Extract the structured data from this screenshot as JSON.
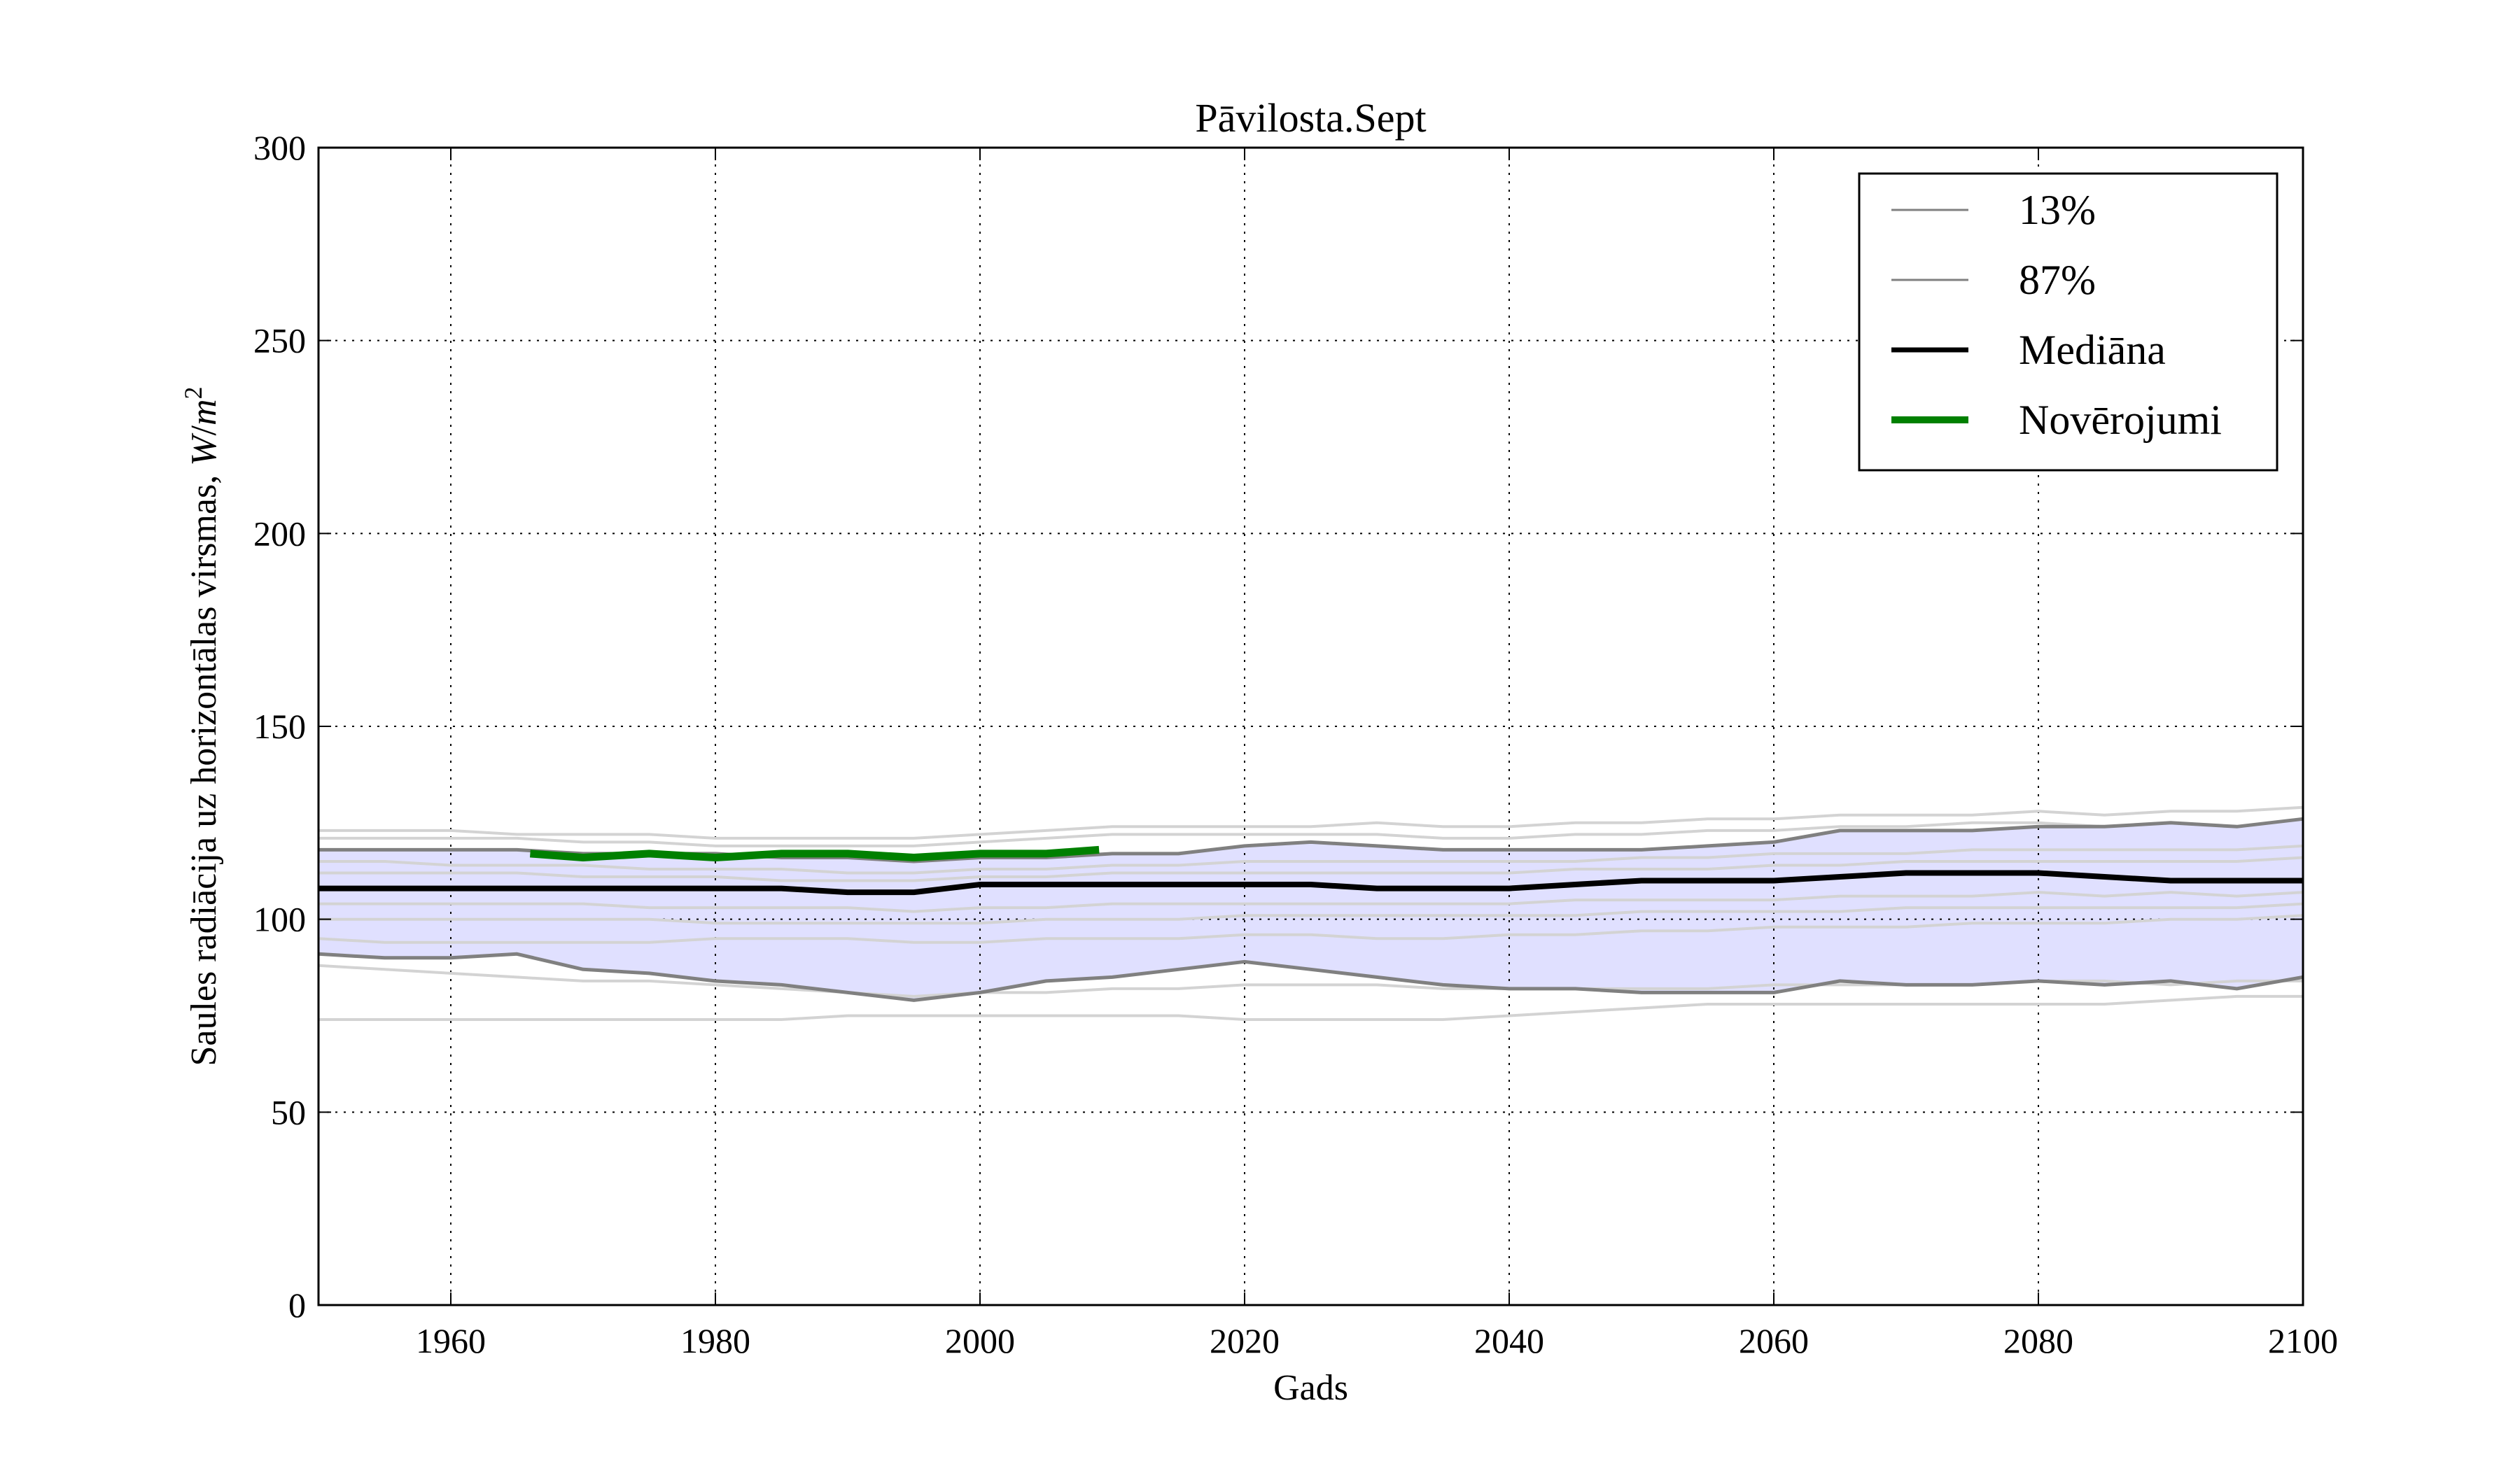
{
  "chart_data": {
    "type": "line",
    "title": "Pāvilosta.Sept",
    "xlabel": "Gads",
    "ylabel": "Saules radiācija uz horizontālas virsmas, W/m²",
    "ylabel_main": "Saules radiācija uz horizontālas virsmas, ",
    "ylabel_unit_w": "W",
    "ylabel_unit_slash": "/",
    "ylabel_unit_m": "m",
    "ylabel_unit_exp": "2",
    "xlim": [
      1950,
      2100
    ],
    "ylim": [
      0,
      300
    ],
    "xticks": [
      1960,
      1980,
      2000,
      2020,
      2040,
      2060,
      2080,
      2100
    ],
    "yticks": [
      0,
      50,
      100,
      150,
      200,
      250,
      300
    ],
    "grid": true,
    "legend_position": "top-right",
    "legend": [
      {
        "label": "13%",
        "color": "#808080",
        "style": "thin"
      },
      {
        "label": "87%",
        "color": "#808080",
        "style": "thin"
      },
      {
        "label": "Mediāna",
        "color": "#000000",
        "style": "thick"
      },
      {
        "label": "Novērojumi",
        "color": "#008000",
        "style": "thick"
      }
    ],
    "band_color": "#e0e0ff",
    "ensemble_color": "#d3d3d3",
    "x": [
      1950,
      1955,
      1960,
      1965,
      1970,
      1975,
      1980,
      1985,
      1990,
      1995,
      2000,
      2005,
      2010,
      2015,
      2020,
      2025,
      2030,
      2035,
      2040,
      2045,
      2050,
      2055,
      2060,
      2065,
      2070,
      2075,
      2080,
      2085,
      2090,
      2095,
      2100
    ],
    "series": [
      {
        "name": "13%",
        "color": "#808080",
        "values": [
          91,
          90,
          90,
          91,
          87,
          86,
          84,
          83,
          81,
          79,
          81,
          84,
          85,
          87,
          89,
          87,
          85,
          83,
          82,
          82,
          81,
          81,
          81,
          84,
          83,
          83,
          84,
          83,
          84,
          82,
          85
        ]
      },
      {
        "name": "87%",
        "color": "#808080",
        "values": [
          118,
          118,
          118,
          118,
          117,
          117,
          117,
          116,
          116,
          115,
          116,
          116,
          117,
          117,
          119,
          120,
          119,
          118,
          118,
          118,
          118,
          119,
          120,
          123,
          123,
          123,
          124,
          124,
          125,
          124,
          126
        ]
      },
      {
        "name": "Mediāna",
        "color": "#000000",
        "values": [
          108,
          108,
          108,
          108,
          108,
          108,
          108,
          108,
          107,
          107,
          109,
          109,
          109,
          109,
          109,
          109,
          108,
          108,
          108,
          109,
          110,
          110,
          110,
          111,
          112,
          112,
          112,
          111,
          110,
          110,
          110
        ]
      },
      {
        "name": "Novērojumi",
        "color": "#008000",
        "x": [
          1966,
          1970,
          1975,
          1980,
          1985,
          1990,
          1995,
          2000,
          2005,
          2009
        ],
        "values": [
          117,
          116,
          117,
          116,
          117,
          117,
          116,
          117,
          117,
          118
        ]
      }
    ],
    "ensemble_members": [
      [
        123,
        123,
        123,
        122,
        122,
        122,
        121,
        121,
        121,
        121,
        122,
        123,
        124,
        124,
        124,
        124,
        125,
        124,
        124,
        125,
        125,
        126,
        126,
        127,
        127,
        127,
        128,
        127,
        128,
        128,
        129
      ],
      [
        121,
        121,
        121,
        121,
        120,
        120,
        119,
        119,
        119,
        119,
        120,
        121,
        122,
        122,
        122,
        122,
        122,
        121,
        121,
        122,
        122,
        123,
        123,
        124,
        124,
        125,
        125,
        124,
        125,
        124,
        126
      ],
      [
        115,
        115,
        114,
        114,
        114,
        113,
        113,
        113,
        112,
        112,
        113,
        113,
        114,
        114,
        115,
        115,
        115,
        115,
        115,
        115,
        116,
        116,
        117,
        117,
        117,
        118,
        118,
        118,
        118,
        118,
        119
      ],
      [
        112,
        112,
        112,
        112,
        111,
        111,
        111,
        110,
        110,
        110,
        111,
        111,
        112,
        112,
        112,
        112,
        112,
        112,
        112,
        113,
        113,
        113,
        114,
        114,
        115,
        115,
        115,
        115,
        115,
        115,
        116
      ],
      [
        104,
        104,
        104,
        104,
        104,
        103,
        103,
        103,
        103,
        102,
        103,
        103,
        104,
        104,
        104,
        104,
        104,
        104,
        104,
        105,
        105,
        105,
        105,
        106,
        106,
        106,
        107,
        106,
        107,
        106,
        107
      ],
      [
        100,
        100,
        100,
        100,
        100,
        100,
        99,
        99,
        99,
        99,
        99,
        100,
        100,
        100,
        101,
        101,
        101,
        101,
        101,
        101,
        102,
        102,
        102,
        102,
        103,
        103,
        103,
        103,
        103,
        103,
        104
      ],
      [
        95,
        94,
        94,
        94,
        94,
        94,
        95,
        95,
        95,
        94,
        94,
        95,
        95,
        95,
        96,
        96,
        95,
        95,
        96,
        96,
        97,
        97,
        98,
        98,
        98,
        99,
        99,
        99,
        100,
        100,
        101
      ],
      [
        88,
        87,
        86,
        85,
        84,
        84,
        83,
        82,
        81,
        80,
        81,
        81,
        82,
        82,
        83,
        83,
        83,
        82,
        82,
        82,
        82,
        82,
        83,
        83,
        83,
        83,
        84,
        84,
        83,
        84,
        84
      ],
      [
        74,
        74,
        74,
        74,
        74,
        74,
        74,
        74,
        75,
        75,
        75,
        75,
        75,
        75,
        74,
        74,
        74,
        74,
        75,
        76,
        77,
        78,
        78,
        78,
        78,
        78,
        78,
        78,
        79,
        80,
        80
      ]
    ]
  }
}
